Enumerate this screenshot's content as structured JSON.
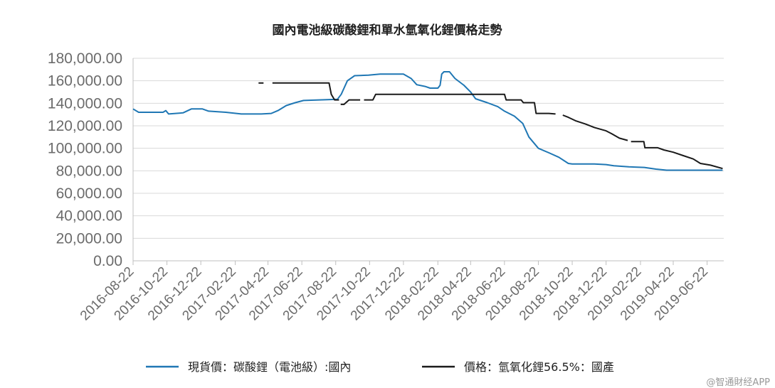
{
  "chart_data": {
    "type": "line",
    "title": "國內電池級碳酸鋰和單水氫氧化鋰價格走勢",
    "xlabel": "",
    "ylabel": "",
    "ylim": [
      0,
      180000
    ],
    "x_range": [
      "2016-08-22",
      "2019-07-22"
    ],
    "y_ticks": [
      "0.00",
      "20,000.00",
      "40,000.00",
      "60,000.00",
      "80,000.00",
      "100,000.00",
      "120,000.00",
      "140,000.00",
      "160,000.00",
      "180,000.00"
    ],
    "x_ticks": [
      "2016-08-22",
      "2016-10-22",
      "2016-12-22",
      "2017-02-22",
      "2017-04-22",
      "2017-06-22",
      "2017-08-22",
      "2017-10-22",
      "2017-12-22",
      "2018-02-22",
      "2018-04-22",
      "2018-06-22",
      "2018-08-22",
      "2018-10-22",
      "2018-12-22",
      "2019-02-22",
      "2019-04-22",
      "2019-06-22"
    ],
    "grid": true,
    "legend_position": "bottom",
    "series": [
      {
        "name": "現貨價：碳酸鋰（電池級）:國內",
        "color": "#1f77b4",
        "points": [
          [
            "2016-08-22",
            135000
          ],
          [
            "2016-09-01",
            132000
          ],
          [
            "2016-10-15",
            132000
          ],
          [
            "2016-10-20",
            133500
          ],
          [
            "2016-10-25",
            130500
          ],
          [
            "2016-11-20",
            131500
          ],
          [
            "2016-12-05",
            135000
          ],
          [
            "2016-12-25",
            135000
          ],
          [
            "2017-01-05",
            133000
          ],
          [
            "2017-02-05",
            132000
          ],
          [
            "2017-03-05",
            130500
          ],
          [
            "2017-04-10",
            130500
          ],
          [
            "2017-04-28",
            131000
          ],
          [
            "2017-05-10",
            133500
          ],
          [
            "2017-05-25",
            138000
          ],
          [
            "2017-06-10",
            140500
          ],
          [
            "2017-06-25",
            142500
          ],
          [
            "2017-08-25",
            143500
          ],
          [
            "2017-09-01",
            148000
          ],
          [
            "2017-09-12",
            160000
          ],
          [
            "2017-09-25",
            164500
          ],
          [
            "2017-10-20",
            165000
          ],
          [
            "2017-11-10",
            166000
          ],
          [
            "2017-12-22",
            166000
          ],
          [
            "2018-01-05",
            162000
          ],
          [
            "2018-01-15",
            156500
          ],
          [
            "2018-01-30",
            155000
          ],
          [
            "2018-02-08",
            153500
          ],
          [
            "2018-02-22",
            153500
          ],
          [
            "2018-02-26",
            156000
          ],
          [
            "2018-03-01",
            166000
          ],
          [
            "2018-03-05",
            168000
          ],
          [
            "2018-03-15",
            168000
          ],
          [
            "2018-03-25",
            162000
          ],
          [
            "2018-04-10",
            156000
          ],
          [
            "2018-04-22",
            150000
          ],
          [
            "2018-05-01",
            144000
          ],
          [
            "2018-05-22",
            140500
          ],
          [
            "2018-06-10",
            137000
          ],
          [
            "2018-06-22",
            133000
          ],
          [
            "2018-07-10",
            128500
          ],
          [
            "2018-07-25",
            122000
          ],
          [
            "2018-08-05",
            110000
          ],
          [
            "2018-08-22",
            100000
          ],
          [
            "2018-09-10",
            96000
          ],
          [
            "2018-09-28",
            92000
          ],
          [
            "2018-10-15",
            86500
          ],
          [
            "2018-10-22",
            86000
          ],
          [
            "2018-12-01",
            86000
          ],
          [
            "2018-12-22",
            85500
          ],
          [
            "2019-01-05",
            84500
          ],
          [
            "2019-02-01",
            83500
          ],
          [
            "2019-03-01",
            83000
          ],
          [
            "2019-03-22",
            81500
          ],
          [
            "2019-04-10",
            80500
          ],
          [
            "2019-05-15",
            80500
          ],
          [
            "2019-07-20",
            80500
          ]
        ]
      },
      {
        "name": "價格：氫氧化鋰56.5%：國產",
        "color": "#1a1a1a",
        "segments": [
          [
            [
              "2017-04-05",
              158000
            ],
            [
              "2017-04-14",
              158000
            ]
          ],
          [
            [
              "2017-04-30",
              158000
            ],
            [
              "2017-08-10",
              158000
            ],
            [
              "2017-08-14",
              148000
            ],
            [
              "2017-08-20",
              143000
            ],
            [
              "2017-08-28",
              143000
            ]
          ],
          [
            [
              "2017-08-31",
              139000
            ],
            [
              "2017-09-06",
              139000
            ],
            [
              "2017-09-15",
              143000
            ],
            [
              "2017-10-05",
              143000
            ]
          ],
          [
            [
              "2017-10-12",
              143000
            ],
            [
              "2017-10-28",
              143000
            ],
            [
              "2017-11-02",
              148000
            ],
            [
              "2018-06-22",
              148000
            ],
            [
              "2018-06-25",
              143000
            ],
            [
              "2018-07-22",
              143000
            ],
            [
              "2018-07-26",
              140500
            ],
            [
              "2018-08-15",
              140500
            ],
            [
              "2018-08-18",
              131000
            ],
            [
              "2018-09-10",
              131000
            ],
            [
              "2018-09-22",
              130500
            ]
          ],
          [
            [
              "2018-10-05",
              129500
            ],
            [
              "2018-10-15",
              127500
            ],
            [
              "2018-10-28",
              124500
            ],
            [
              "2018-11-15",
              121500
            ],
            [
              "2018-12-01",
              118500
            ],
            [
              "2018-12-22",
              115500
            ],
            [
              "2019-01-01",
              113000
            ],
            [
              "2019-01-15",
              109000
            ],
            [
              "2019-01-30",
              107000
            ]
          ],
          [
            [
              "2019-02-05",
              106000
            ],
            [
              "2019-02-28",
              106000
            ],
            [
              "2019-03-02",
              100500
            ],
            [
              "2019-03-25",
              100500
            ],
            [
              "2019-04-05",
              98500
            ],
            [
              "2019-04-22",
              96500
            ],
            [
              "2019-05-10",
              93500
            ],
            [
              "2019-05-28",
              90500
            ],
            [
              "2019-06-10",
              86500
            ],
            [
              "2019-06-28",
              85000
            ],
            [
              "2019-07-20",
              82000
            ]
          ]
        ]
      }
    ]
  },
  "watermark": "@智通財经APP"
}
